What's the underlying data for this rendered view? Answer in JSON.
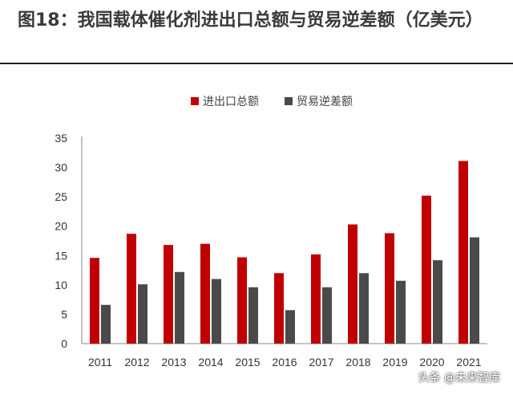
{
  "header": {
    "title": "图18：我国载体催化剂进出口总额与贸易逆差额（亿美元）"
  },
  "watermark": "头条 @未来智库",
  "colors": {
    "series1": "#c00000",
    "series2": "#4a4a4a",
    "axis": "#888888"
  },
  "chart_data": {
    "type": "bar",
    "title": "",
    "xlabel": "",
    "ylabel": "",
    "categories": [
      "2011",
      "2012",
      "2013",
      "2014",
      "2015",
      "2016",
      "2017",
      "2018",
      "2019",
      "2020",
      "2021"
    ],
    "series": [
      {
        "name": "进出口总额",
        "values": [
          14.6,
          18.7,
          16.8,
          17.0,
          14.7,
          12.0,
          15.2,
          20.3,
          18.8,
          25.2,
          31.1
        ]
      },
      {
        "name": "贸易逆差额",
        "values": [
          6.6,
          10.1,
          12.2,
          11.0,
          9.6,
          5.7,
          9.6,
          12.0,
          10.7,
          14.2,
          18.1
        ]
      }
    ],
    "ylim": [
      0,
      35
    ],
    "yticks": [
      0,
      5,
      10,
      15,
      20,
      25,
      30,
      35
    ],
    "grid": false,
    "legend": "top-center"
  }
}
